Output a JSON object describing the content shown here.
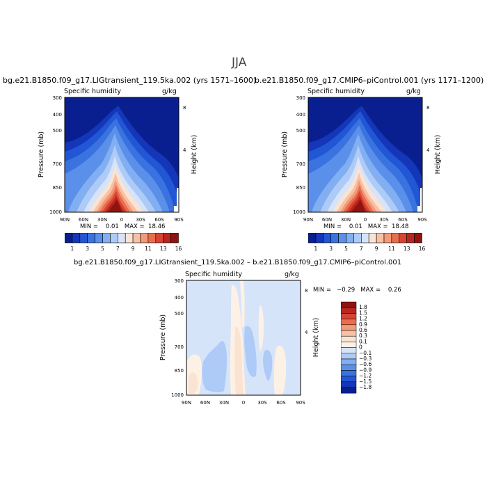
{
  "season": "JJA",
  "panels": [
    {
      "title": "bg.e21.B1850.f09_g17.LIGtransient_119.5ka.002 (yrs 1571–1600)",
      "left_label": "Specific humidity",
      "right_label": "g/kg",
      "stats": "MIN =    0.01   MAX =  18.46"
    },
    {
      "title": "b.e21.B1850.f09_g17.CMIP6–piControl.001 (yrs 1171–1200)",
      "left_label": "Specific humidity",
      "right_label": "g/kg",
      "stats": "MIN =    0.01   MAX =  18.48"
    },
    {
      "title": "bg.e21.B1850.f09_g17.LIGtransient_119.5ka.002 – b.e21.B1850.f09_g17.CMIP6–piControl.001",
      "left_label": "Specific humidity",
      "right_label": "g/kg",
      "stats": "MIN =   −0.29   MAX =    0.26"
    }
  ],
  "axis": {
    "ylabel": "Pressure (mb)",
    "y2label": "Height (km)",
    "yticks": [
      "300",
      "400",
      "500",
      "700",
      "850",
      "1000"
    ],
    "xticks": [
      "90N",
      "60N",
      "30N",
      "0",
      "30S",
      "60S",
      "90S"
    ],
    "height_ticks": [
      "8",
      "4"
    ]
  },
  "colorbar_mean": {
    "labels": [
      "1",
      "3",
      "5",
      "7",
      "9",
      "11",
      "13",
      "16"
    ],
    "colors": [
      "#0a1f8f",
      "#1436b8",
      "#2156d4",
      "#3a73e0",
      "#5b90ea",
      "#82aef2",
      "#aecaf7",
      "#d6e4fa",
      "#fbe3d2",
      "#f8c1a5",
      "#f39a78",
      "#ea6d4c",
      "#d84431",
      "#b8261f",
      "#8f1410"
    ]
  },
  "colorbar_diff": {
    "labels": [
      "1.8",
      "1.5",
      "1.2",
      "0.9",
      "0.6",
      "0.3",
      "0.1",
      "0",
      "−0.1",
      "−0.3",
      "−0.6",
      "−0.9",
      "−1.2",
      "−1.5",
      "−1.8"
    ],
    "colors": [
      "#8f1410",
      "#b8261f",
      "#d84431",
      "#ea6d4c",
      "#f39a78",
      "#f8c1a5",
      "#fbe3d2",
      "#fdf1e6",
      "#d6e4fa",
      "#aecaf7",
      "#82aef2",
      "#5b90ea",
      "#3a73e0",
      "#2156d4",
      "#1436b8",
      "#0a1f8f"
    ]
  },
  "chart_data": [
    {
      "type": "heatmap",
      "title": "bg.e21.B1850.f09_g17.LIGtransient_119.5ka.002 (yrs 1571–1600)",
      "variable": "Specific humidity",
      "units": "g/kg",
      "xlabel": "",
      "ylabel": "Pressure (mb)",
      "x_range": [
        "90N",
        "90S"
      ],
      "y_range": [
        300,
        1000
      ],
      "y_log": true,
      "min": 0.01,
      "max": 18.46
    },
    {
      "type": "heatmap",
      "title": "b.e21.B1850.f09_g17.CMIP6–piControl.001 (yrs 1171–1200)",
      "variable": "Specific humidity",
      "units": "g/kg",
      "xlabel": "",
      "ylabel": "Pressure (mb)",
      "x_range": [
        "90N",
        "90S"
      ],
      "y_range": [
        300,
        1000
      ],
      "y_log": true,
      "min": 0.01,
      "max": 18.48
    },
    {
      "type": "heatmap",
      "title": "bg.e21.B1850.f09_g17.LIGtransient_119.5ka.002 – b.e21.B1850.f09_g17.CMIP6–piControl.001",
      "variable": "Specific humidity",
      "units": "g/kg",
      "xlabel": "",
      "ylabel": "Pressure (mb)",
      "x_range": [
        "90N",
        "90S"
      ],
      "y_range": [
        300,
        1000
      ],
      "y_log": true,
      "min": -0.29,
      "max": 0.26
    }
  ]
}
